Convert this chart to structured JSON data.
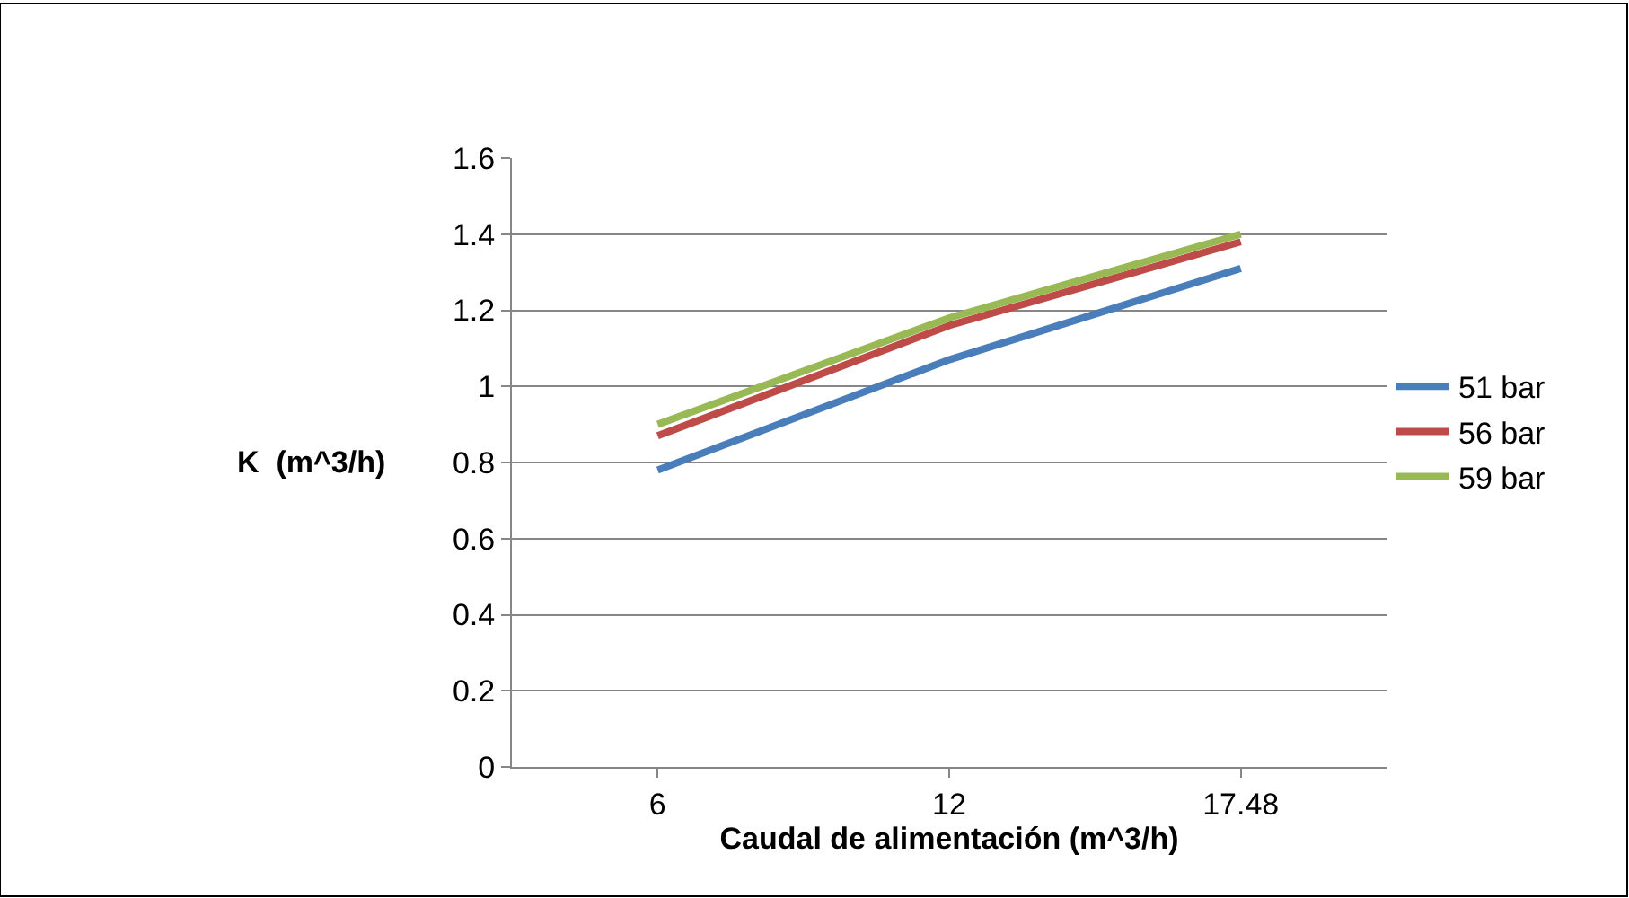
{
  "chart_data": {
    "type": "line",
    "xlabel": "Caudal de alimentación (m^3/h)",
    "ylabel": "K  (m^3/h)",
    "categories": [
      "6",
      "12",
      "17.48"
    ],
    "series": [
      {
        "name": "51 bar",
        "color": "#4a7ebb",
        "values": [
          0.78,
          1.07,
          1.31
        ]
      },
      {
        "name": "56 bar",
        "color": "#be4b48",
        "values": [
          0.87,
          1.16,
          1.38
        ]
      },
      {
        "name": "59 bar",
        "color": "#98b954",
        "values": [
          0.9,
          1.18,
          1.4
        ]
      }
    ],
    "ylim": [
      0,
      1.6
    ],
    "yticks": [
      0,
      0.2,
      0.4,
      0.6,
      0.8,
      1,
      1.2,
      1.4,
      1.6
    ],
    "grid": "y",
    "legend": "right",
    "marker": "none",
    "line_style": "solid"
  }
}
